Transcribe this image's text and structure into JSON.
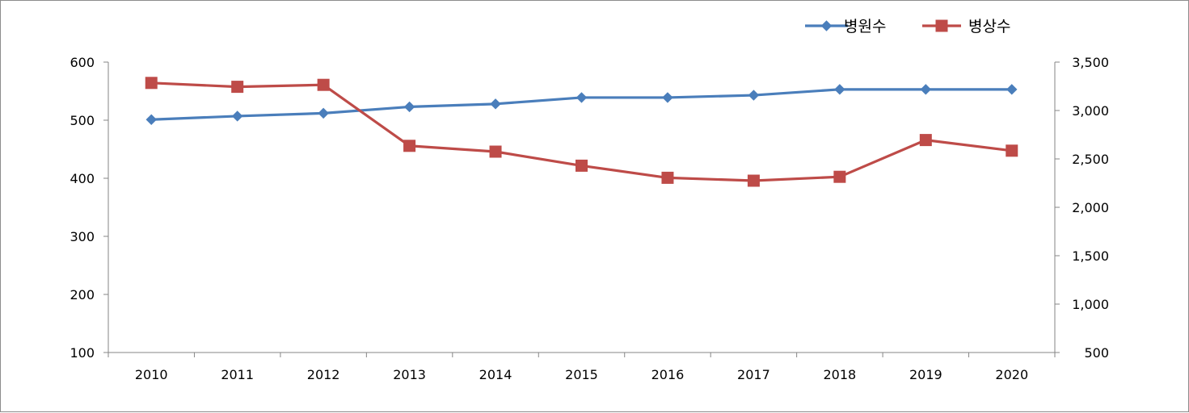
{
  "chart_data": {
    "type": "line",
    "title": "",
    "categories": [
      "2010",
      "2011",
      "2012",
      "2013",
      "2014",
      "2015",
      "2016",
      "2017",
      "2018",
      "2019",
      "2020"
    ],
    "series": [
      {
        "name": "병원수",
        "axis": "left",
        "color": "#4a7ebb",
        "marker": "diamond",
        "values": [
          501,
          507,
          512,
          523,
          528,
          539,
          539,
          543,
          553,
          553,
          553
        ]
      },
      {
        "name": "병상수",
        "axis": "right",
        "color": "#be4b48",
        "marker": "square",
        "values": [
          3285,
          3245,
          3265,
          2635,
          2575,
          2430,
          2305,
          2275,
          2315,
          2695,
          2585
        ]
      }
    ],
    "y_left": {
      "lim": [
        100,
        600
      ],
      "ticks": [
        "100",
        "200",
        "300",
        "400",
        "500",
        "600"
      ]
    },
    "y_right": {
      "lim": [
        500,
        3500
      ],
      "ticks": [
        "500",
        "1,000",
        "1,500",
        "2,000",
        "2,500",
        "3,000",
        "3,500"
      ]
    },
    "legend": "top-right",
    "grid": false
  }
}
